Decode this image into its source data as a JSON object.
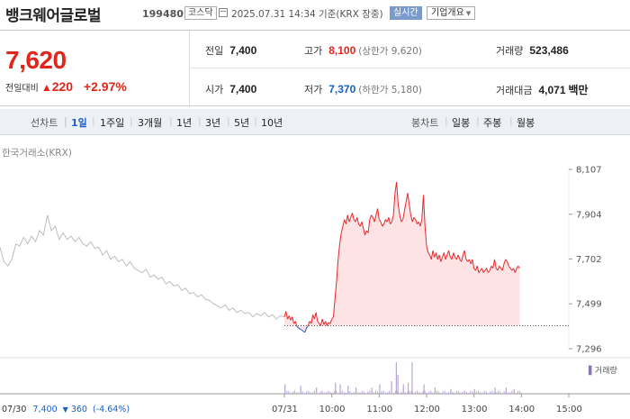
{
  "header": {
    "name": "뱅크웨어글로벌",
    "code": "199480",
    "market": "코스닥",
    "datetime": "2025.07.31 14:34 기준(KRX 장중)",
    "realtime": "실시간",
    "company_info": "기업개요"
  },
  "quote": {
    "price": "7,620",
    "change_label": "전일대비",
    "change_arrow": "▲",
    "change": "220",
    "change_pct": "+2.97%",
    "prev_close_label": "전일",
    "prev_close": "7,400",
    "high_label": "고가",
    "high": "8,100",
    "upper_limit": "(상한가 9,620)",
    "volume_label": "거래량",
    "volume": "523,486",
    "open_label": "시가",
    "open": "7,400",
    "low_label": "저가",
    "low": "7,370",
    "lower_limit": "(하한가 5,180)",
    "value_label": "거래대금",
    "value": "4,071",
    "value_unit": "백만"
  },
  "tabs": {
    "line_label": "선차트",
    "line_items": [
      "1일",
      "1주일",
      "3개월",
      "1년",
      "3년",
      "5년",
      "10년"
    ],
    "line_active": "1일",
    "candle_label": "봉차트",
    "candle_items": [
      "일봉",
      "주봉",
      "월봉"
    ]
  },
  "chart_data": {
    "type": "line",
    "source_label": "한국거래소(KRX)",
    "y_ticks": [
      "8,107",
      "7,904",
      "7,702",
      "7,499",
      "7,296"
    ],
    "y_min": 7296,
    "y_max": 8107,
    "prev_close": 7400,
    "x_ticks": [
      "07/30",
      "07/31",
      "10:00",
      "11:00",
      "12:00",
      "13:00",
      "14:00",
      "15:00"
    ],
    "volume_label": "거래량",
    "prev_day_footer": {
      "date": "07/30",
      "price": "7,400",
      "arrow": "▼",
      "change": "360",
      "pct": "(-4.64%)"
    },
    "colors": {
      "prev_day": "#bdbdbd",
      "up": "#e8262a",
      "down": "#1a5fc7",
      "fill": "#fde3e3",
      "volume": "#b7a6d4"
    },
    "series_prev_day": [
      [
        0,
        7755
      ],
      [
        0.5,
        7690
      ],
      [
        1,
        7670
      ],
      [
        1.5,
        7700
      ],
      [
        2,
        7770
      ],
      [
        2.5,
        7760
      ],
      [
        3,
        7800
      ],
      [
        3.5,
        7770
      ],
      [
        4,
        7805
      ],
      [
        4.5,
        7780
      ],
      [
        5,
        7830
      ],
      [
        5.5,
        7810
      ],
      [
        6,
        7900
      ],
      [
        6.5,
        7830
      ],
      [
        7,
        7850
      ],
      [
        7.5,
        7790
      ],
      [
        8,
        7820
      ],
      [
        8.5,
        7790
      ],
      [
        9,
        7805
      ],
      [
        9.5,
        7780
      ],
      [
        10,
        7800
      ],
      [
        10.5,
        7770
      ],
      [
        11,
        7760
      ],
      [
        11.5,
        7780
      ],
      [
        12,
        7750
      ],
      [
        12.5,
        7755
      ],
      [
        13,
        7720
      ],
      [
        13.5,
        7740
      ],
      [
        14,
        7700
      ],
      [
        14.5,
        7715
      ],
      [
        15,
        7690
      ],
      [
        15.5,
        7700
      ],
      [
        16,
        7670
      ],
      [
        16.5,
        7690
      ],
      [
        17,
        7660
      ],
      [
        17.5,
        7650
      ],
      [
        18,
        7640
      ],
      [
        18.5,
        7655
      ],
      [
        19,
        7620
      ],
      [
        19.5,
        7630
      ],
      [
        20,
        7610
      ],
      [
        20.5,
        7620
      ],
      [
        21,
        7590
      ],
      [
        21.5,
        7600
      ],
      [
        22,
        7580
      ],
      [
        22.5,
        7585
      ],
      [
        23,
        7560
      ],
      [
        23.5,
        7570
      ],
      [
        24,
        7545
      ],
      [
        24.5,
        7550
      ],
      [
        25,
        7530
      ],
      [
        25.5,
        7540
      ],
      [
        26,
        7520
      ],
      [
        26.5,
        7515
      ],
      [
        27,
        7500
      ],
      [
        27.5,
        7490
      ],
      [
        28,
        7480
      ],
      [
        28.5,
        7495
      ],
      [
        29,
        7470
      ],
      [
        29.5,
        7480
      ],
      [
        30,
        7460
      ],
      [
        30.5,
        7470
      ],
      [
        31,
        7455
      ],
      [
        31.5,
        7460
      ],
      [
        32,
        7440
      ],
      [
        32.5,
        7455
      ],
      [
        33,
        7445
      ],
      [
        33.5,
        7460
      ],
      [
        34,
        7440
      ],
      [
        34.5,
        7450
      ],
      [
        35,
        7430
      ],
      [
        35.5,
        7445
      ],
      [
        36,
        7440
      ]
    ],
    "series_today": [
      [
        36,
        7440
      ],
      [
        36.2,
        7465
      ],
      [
        36.4,
        7430
      ],
      [
        36.6,
        7445
      ],
      [
        36.8,
        7425
      ],
      [
        37,
        7440
      ],
      [
        37.2,
        7410
      ],
      [
        37.4,
        7420
      ],
      [
        37.6,
        7395
      ],
      [
        37.8,
        7390
      ],
      [
        38,
        7385
      ],
      [
        38.2,
        7380
      ],
      [
        38.4,
        7375
      ],
      [
        38.6,
        7370
      ],
      [
        38.8,
        7390
      ],
      [
        39,
        7400
      ],
      [
        39.2,
        7420
      ],
      [
        39.4,
        7410
      ],
      [
        39.6,
        7450
      ],
      [
        39.8,
        7430
      ],
      [
        40,
        7460
      ],
      [
        40.2,
        7420
      ],
      [
        40.4,
        7410
      ],
      [
        40.6,
        7400
      ],
      [
        40.8,
        7430
      ],
      [
        41,
        7405
      ],
      [
        41.2,
        7420
      ],
      [
        41.4,
        7400
      ],
      [
        41.6,
        7415
      ],
      [
        41.8,
        7410
      ],
      [
        42,
        7430
      ],
      [
        42.2,
        7440
      ],
      [
        42.4,
        7520
      ],
      [
        42.6,
        7600
      ],
      [
        42.8,
        7700
      ],
      [
        43,
        7770
      ],
      [
        43.2,
        7820
      ],
      [
        43.4,
        7850
      ],
      [
        43.6,
        7880
      ],
      [
        43.8,
        7860
      ],
      [
        44,
        7900
      ],
      [
        44.2,
        7870
      ],
      [
        44.4,
        7890
      ],
      [
        44.6,
        7910
      ],
      [
        44.8,
        7880
      ],
      [
        45,
        7870
      ],
      [
        45.2,
        7890
      ],
      [
        45.4,
        7860
      ],
      [
        45.6,
        7850
      ],
      [
        45.8,
        7870
      ],
      [
        46,
        7840
      ],
      [
        46.2,
        7810
      ],
      [
        46.4,
        7830
      ],
      [
        46.6,
        7820
      ],
      [
        46.8,
        7880
      ],
      [
        47,
        7900
      ],
      [
        47.2,
        7890
      ],
      [
        47.4,
        7870
      ],
      [
        47.6,
        7900
      ],
      [
        47.8,
        7930
      ],
      [
        48,
        7880
      ],
      [
        48.2,
        7870
      ],
      [
        48.4,
        7850
      ],
      [
        48.6,
        7860
      ],
      [
        48.8,
        7880
      ],
      [
        49,
        7870
      ],
      [
        49.2,
        7890
      ],
      [
        49.4,
        7860
      ],
      [
        49.6,
        7870
      ],
      [
        49.8,
        7900
      ],
      [
        50,
        8000
      ],
      [
        50.2,
        8050
      ],
      [
        50.4,
        7950
      ],
      [
        50.6,
        7900
      ],
      [
        50.8,
        7870
      ],
      [
        51,
        7880
      ],
      [
        51.2,
        7920
      ],
      [
        51.4,
        7960
      ],
      [
        51.6,
        8000
      ],
      [
        51.8,
        7950
      ],
      [
        52,
        7900
      ],
      [
        52.2,
        7870
      ],
      [
        52.4,
        7890
      ],
      [
        52.6,
        7880
      ],
      [
        52.8,
        7860
      ],
      [
        53,
        7870
      ],
      [
        53.2,
        7850
      ],
      [
        53.4,
        7880
      ],
      [
        53.6,
        7990
      ],
      [
        53.8,
        7850
      ],
      [
        54,
        7760
      ],
      [
        54.2,
        7730
      ],
      [
        54.4,
        7720
      ],
      [
        54.6,
        7700
      ],
      [
        54.8,
        7740
      ],
      [
        55,
        7710
      ],
      [
        55.2,
        7730
      ],
      [
        55.4,
        7700
      ],
      [
        55.6,
        7720
      ],
      [
        55.8,
        7690
      ],
      [
        56,
        7710
      ],
      [
        56.2,
        7730
      ],
      [
        56.4,
        7700
      ],
      [
        56.6,
        7720
      ],
      [
        56.8,
        7740
      ],
      [
        57,
        7710
      ],
      [
        57.2,
        7700
      ],
      [
        57.4,
        7730
      ],
      [
        57.6,
        7710
      ],
      [
        57.8,
        7700
      ],
      [
        58,
        7720
      ],
      [
        58.2,
        7700
      ],
      [
        58.4,
        7690
      ],
      [
        58.6,
        7720
      ],
      [
        58.8,
        7740
      ],
      [
        59,
        7700
      ],
      [
        59.2,
        7690
      ],
      [
        59.4,
        7700
      ],
      [
        59.6,
        7680
      ],
      [
        59.8,
        7700
      ],
      [
        60,
        7660
      ],
      [
        60.2,
        7650
      ],
      [
        60.4,
        7670
      ],
      [
        60.6,
        7640
      ],
      [
        60.8,
        7650
      ],
      [
        61,
        7660
      ],
      [
        61.2,
        7640
      ],
      [
        61.4,
        7650
      ],
      [
        61.6,
        7660
      ],
      [
        61.8,
        7640
      ],
      [
        62,
        7650
      ],
      [
        62.2,
        7670
      ],
      [
        62.4,
        7660
      ],
      [
        62.6,
        7700
      ],
      [
        62.8,
        7660
      ],
      [
        63,
        7650
      ],
      [
        63.2,
        7670
      ],
      [
        63.4,
        7660
      ],
      [
        63.6,
        7650
      ],
      [
        63.8,
        7680
      ],
      [
        64,
        7700
      ],
      [
        64.2,
        7690
      ],
      [
        64.4,
        7670
      ],
      [
        64.6,
        7660
      ],
      [
        64.8,
        7650
      ],
      [
        65,
        7660
      ],
      [
        65.2,
        7640
      ],
      [
        65.4,
        7660
      ],
      [
        65.6,
        7670
      ],
      [
        65.8,
        7660
      ]
    ],
    "volume_spikes": [
      [
        36,
        0.3
      ],
      [
        38,
        0.25
      ],
      [
        40,
        0.2
      ],
      [
        42.4,
        0.35
      ],
      [
        43,
        0.3
      ],
      [
        44,
        0.25
      ],
      [
        45,
        0.2
      ],
      [
        47,
        0.2
      ],
      [
        48,
        0.3
      ],
      [
        49.5,
        0.4
      ],
      [
        50.1,
        1.0
      ],
      [
        50.3,
        0.6
      ],
      [
        51,
        0.3
      ],
      [
        51.6,
        0.35
      ],
      [
        52.1,
        1.0
      ],
      [
        53.6,
        0.3
      ],
      [
        55,
        0.2
      ],
      [
        57,
        0.15
      ],
      [
        60,
        0.15
      ],
      [
        62.6,
        0.2
      ],
      [
        64,
        0.2
      ],
      [
        65,
        0.15
      ]
    ]
  }
}
